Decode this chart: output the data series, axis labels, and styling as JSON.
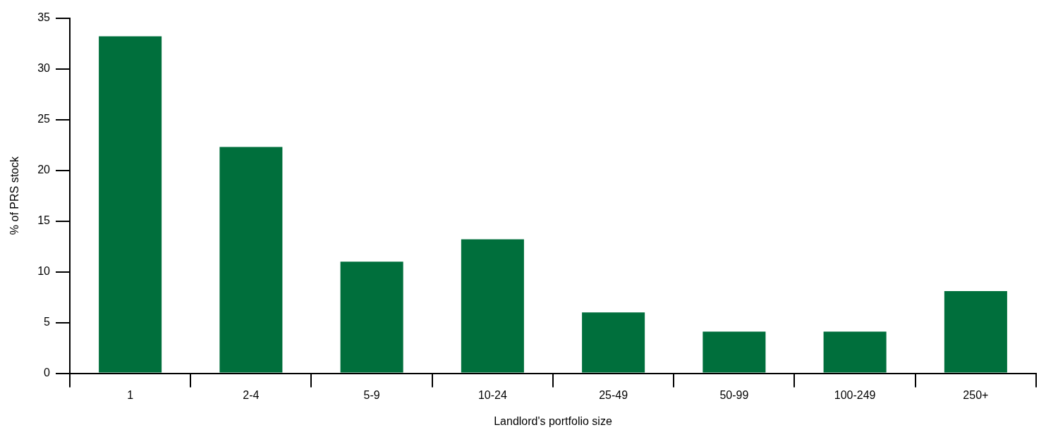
{
  "chart_data": {
    "type": "bar",
    "xlabel": "Landlord's portfolio size",
    "ylabel": "% of PRS stock",
    "categories": [
      "1",
      "2-4",
      "5-9",
      "10-24",
      "25-49",
      "50-99",
      "100-249",
      "250+"
    ],
    "values": [
      33.2,
      22.3,
      11.0,
      13.2,
      6.0,
      4.1,
      4.1,
      8.1
    ],
    "color": "#006f3c",
    "ylim": [
      0,
      35
    ],
    "yticks": [
      0,
      5,
      10,
      15,
      20,
      25,
      30,
      35
    ],
    "grid": false,
    "legend": false
  }
}
